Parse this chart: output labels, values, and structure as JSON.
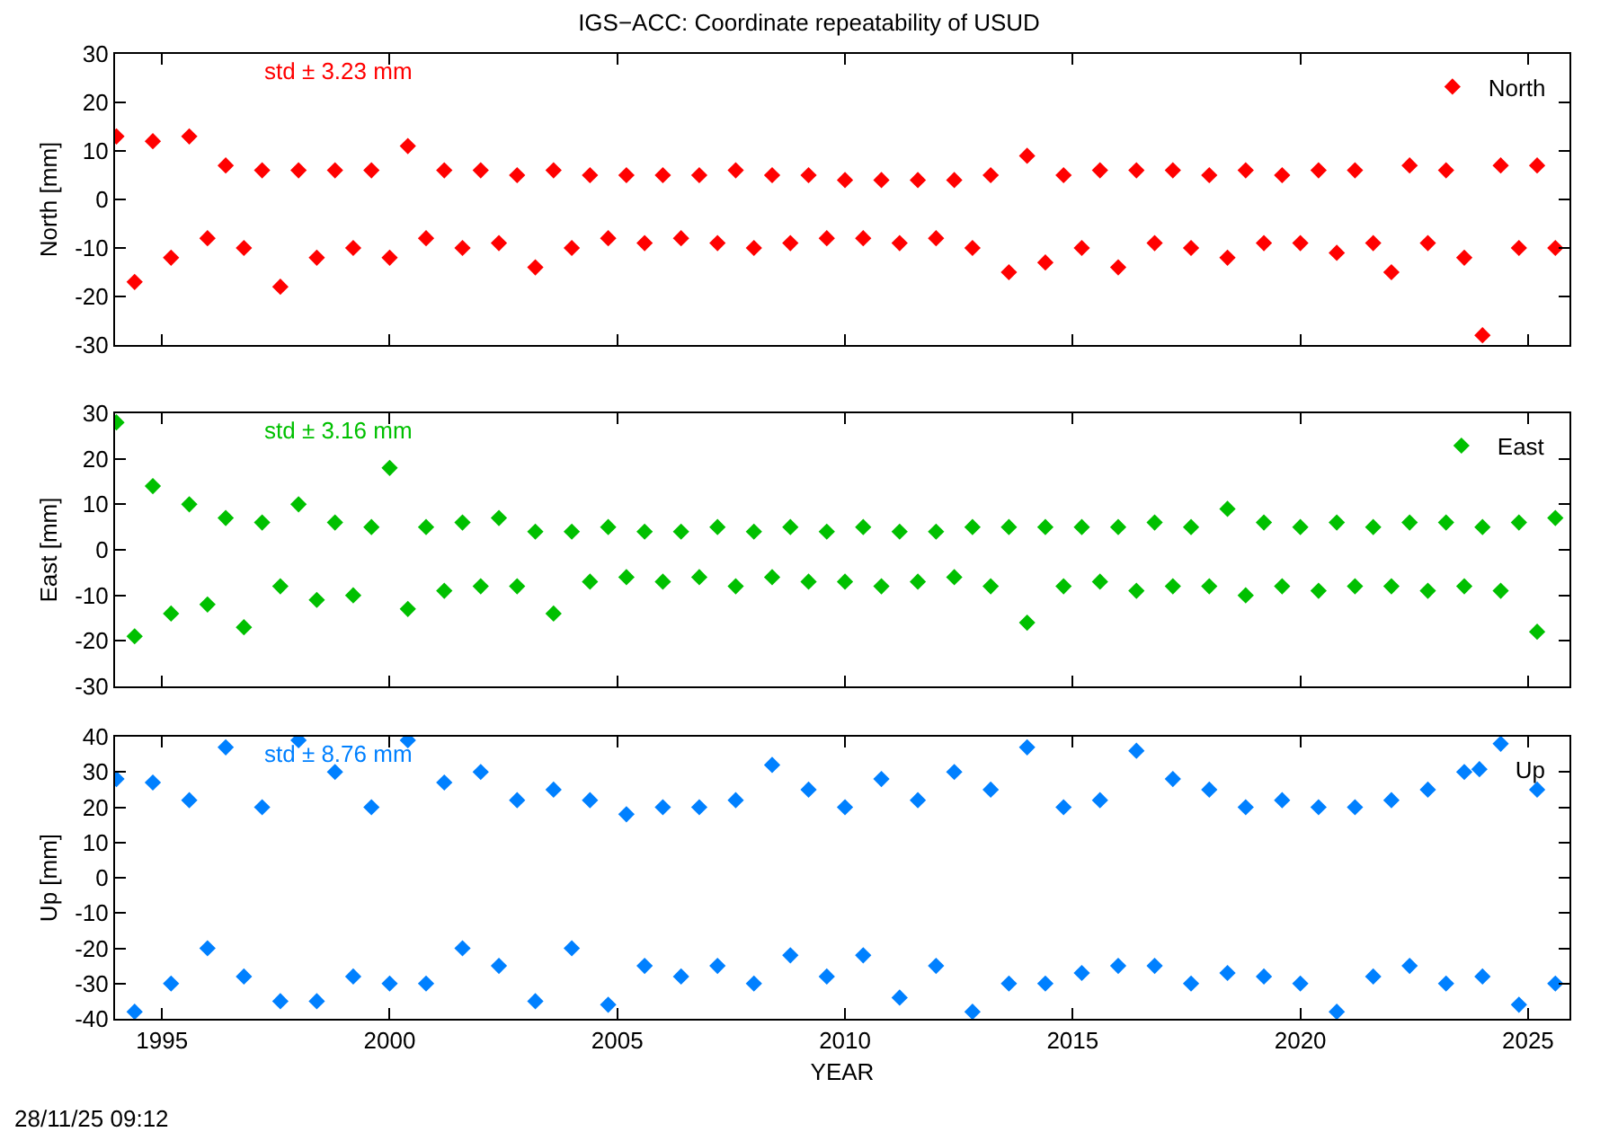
{
  "chart_data": [
    {
      "type": "scatter",
      "title": "IGS−ACC: Coordinate repeatability of USUD",
      "ylabel": "North [mm]",
      "annotations": [
        "std ± 3.23 mm"
      ],
      "legend": "top right",
      "marker": "diamond",
      "grid": false,
      "tick_labels": "y",
      "xlim": [
        1993.97,
        2025.91
      ],
      "xticks": [
        1995,
        2000,
        2005,
        2010,
        2015,
        2020,
        2025
      ],
      "ylim": [
        -30,
        30
      ],
      "yticks": [
        -30,
        -20,
        -10,
        0,
        10,
        20,
        30
      ],
      "x": [
        1994.0,
        1994.4,
        1994.8,
        1995.2,
        1995.6,
        1996.0,
        1996.4,
        1996.8,
        1997.2,
        1997.6,
        1998.0,
        1998.4,
        1998.8,
        1999.2,
        1999.6,
        2000.0,
        2000.4,
        2000.8,
        2001.2,
        2001.6,
        2002.0,
        2002.4,
        2002.8,
        2003.2,
        2003.6,
        2004.0,
        2004.4,
        2004.8,
        2005.2,
        2005.6,
        2006.0,
        2006.4,
        2006.8,
        2007.2,
        2007.6,
        2008.0,
        2008.4,
        2008.8,
        2009.2,
        2009.6,
        2010.0,
        2010.4,
        2010.8,
        2011.2,
        2011.6,
        2012.0,
        2012.4,
        2012.8,
        2013.2,
        2013.6,
        2014.0,
        2014.4,
        2014.8,
        2015.2,
        2015.6,
        2016.0,
        2016.4,
        2016.8,
        2017.2,
        2017.6,
        2018.0,
        2018.4,
        2018.8,
        2019.2,
        2019.6,
        2020.0,
        2020.4,
        2020.8,
        2021.2,
        2021.6,
        2022.0,
        2022.4,
        2022.8,
        2023.2,
        2023.6,
        2024.0,
        2024.4,
        2024.8,
        2025.2,
        2025.6
      ],
      "series": [
        {
          "name": "North",
          "color": "#ff0000",
          "values": [
            13,
            -17,
            12,
            -12,
            13,
            -8,
            7,
            -10,
            6,
            -18,
            6,
            -12,
            6,
            -10,
            6,
            -12,
            11,
            -8,
            6,
            -10,
            6,
            -9,
            5,
            -14,
            6,
            -10,
            5,
            -8,
            5,
            -9,
            5,
            -8,
            5,
            -9,
            6,
            -10,
            5,
            -9,
            5,
            -8,
            4,
            -8,
            4,
            -9,
            4,
            -8,
            4,
            -10,
            5,
            -15,
            9,
            -13,
            5,
            -10,
            6,
            -14,
            6,
            -9,
            6,
            -10,
            5,
            -12,
            6,
            -9,
            5,
            -9,
            6,
            -11,
            6,
            -9,
            -15,
            7,
            -9,
            6,
            -12,
            -28,
            7,
            -10,
            7,
            -10
          ]
        }
      ]
    },
    {
      "type": "scatter",
      "ylabel": "East [mm]",
      "annotations": [
        "std ± 3.16 mm"
      ],
      "legend": "top right",
      "marker": "diamond",
      "grid": false,
      "tick_labels": "y",
      "xlim": [
        1993.97,
        2025.91
      ],
      "xticks": [
        1995,
        2000,
        2005,
        2010,
        2015,
        2020,
        2025
      ],
      "ylim": [
        -30,
        30
      ],
      "yticks": [
        -30,
        -20,
        -10,
        0,
        10,
        20,
        30
      ],
      "x": [
        1994.0,
        1994.4,
        1994.8,
        1995.2,
        1995.6,
        1996.0,
        1996.4,
        1996.8,
        1997.2,
        1997.6,
        1998.0,
        1998.4,
        1998.8,
        1999.2,
        1999.6,
        2000.0,
        2000.4,
        2000.8,
        2001.2,
        2001.6,
        2002.0,
        2002.4,
        2002.8,
        2003.2,
        2003.6,
        2004.0,
        2004.4,
        2004.8,
        2005.2,
        2005.6,
        2006.0,
        2006.4,
        2006.8,
        2007.2,
        2007.6,
        2008.0,
        2008.4,
        2008.8,
        2009.2,
        2009.6,
        2010.0,
        2010.4,
        2010.8,
        2011.2,
        2011.6,
        2012.0,
        2012.4,
        2012.8,
        2013.2,
        2013.6,
        2014.0,
        2014.4,
        2014.8,
        2015.2,
        2015.6,
        2016.0,
        2016.4,
        2016.8,
        2017.2,
        2017.6,
        2018.0,
        2018.4,
        2018.8,
        2019.2,
        2019.6,
        2020.0,
        2020.4,
        2020.8,
        2021.2,
        2021.6,
        2022.0,
        2022.4,
        2022.8,
        2023.2,
        2023.6,
        2024.0,
        2024.4,
        2024.8,
        2025.2,
        2025.6
      ],
      "series": [
        {
          "name": "East",
          "color": "#00c000",
          "values": [
            28,
            -19,
            14,
            -14,
            10,
            -12,
            7,
            -17,
            6,
            -8,
            10,
            -11,
            6,
            -10,
            5,
            18,
            -13,
            5,
            -9,
            6,
            -8,
            7,
            -8,
            4,
            -14,
            4,
            -7,
            5,
            -6,
            4,
            -7,
            4,
            -6,
            5,
            -8,
            4,
            -6,
            5,
            -7,
            4,
            -7,
            5,
            -8,
            4,
            -7,
            4,
            -6,
            5,
            -8,
            5,
            -16,
            5,
            -8,
            5,
            -7,
            5,
            -9,
            6,
            -8,
            5,
            -8,
            9,
            -10,
            6,
            -8,
            5,
            -9,
            6,
            -8,
            5,
            -8,
            6,
            -9,
            6,
            -8,
            5,
            -9,
            6,
            -18,
            7
          ]
        }
      ]
    },
    {
      "type": "scatter",
      "ylabel": "Up [mm]",
      "xlabel": "YEAR",
      "annotations": [
        "std ± 8.76 mm",
        "28/11/25 09:12"
      ],
      "legend": "top right",
      "marker": "diamond",
      "grid": false,
      "xlim": [
        1993.97,
        2025.91
      ],
      "xticks": [
        1995,
        2000,
        2005,
        2010,
        2015,
        2020,
        2025
      ],
      "ylim": [
        -40,
        40
      ],
      "yticks": [
        -40,
        -30,
        -20,
        -10,
        0,
        10,
        20,
        30,
        40
      ],
      "x": [
        1994.0,
        1994.4,
        1994.8,
        1995.2,
        1995.6,
        1996.0,
        1996.4,
        1996.8,
        1997.2,
        1997.6,
        1998.0,
        1998.4,
        1998.8,
        1999.2,
        1999.6,
        2000.0,
        2000.4,
        2000.8,
        2001.2,
        2001.6,
        2002.0,
        2002.4,
        2002.8,
        2003.2,
        2003.6,
        2004.0,
        2004.4,
        2004.8,
        2005.2,
        2005.6,
        2006.0,
        2006.4,
        2006.8,
        2007.2,
        2007.6,
        2008.0,
        2008.4,
        2008.8,
        2009.2,
        2009.6,
        2010.0,
        2010.4,
        2010.8,
        2011.2,
        2011.6,
        2012.0,
        2012.4,
        2012.8,
        2013.2,
        2013.6,
        2014.0,
        2014.4,
        2014.8,
        2015.2,
        2015.6,
        2016.0,
        2016.4,
        2016.8,
        2017.2,
        2017.6,
        2018.0,
        2018.4,
        2018.8,
        2019.2,
        2019.6,
        2020.0,
        2020.4,
        2020.8,
        2021.2,
        2021.6,
        2022.0,
        2022.4,
        2022.8,
        2023.2,
        2023.6,
        2024.0,
        2024.4,
        2024.8,
        2025.2,
        2025.6
      ],
      "series": [
        {
          "name": "Up",
          "color": "#0080ff",
          "values": [
            28,
            -38,
            27,
            -30,
            22,
            -20,
            37,
            -28,
            20,
            -35,
            39,
            -35,
            30,
            -28,
            20,
            -30,
            39,
            -30,
            27,
            -20,
            30,
            -25,
            22,
            -35,
            25,
            -20,
            22,
            -36,
            18,
            -25,
            20,
            -28,
            20,
            -25,
            22,
            -30,
            32,
            -22,
            25,
            -28,
            20,
            -22,
            28,
            -34,
            22,
            -25,
            30,
            -38,
            25,
            -30,
            37,
            -30,
            20,
            -27,
            22,
            -25,
            36,
            -25,
            28,
            -30,
            25,
            -27,
            20,
            -28,
            22,
            -30,
            20,
            -38,
            20,
            -28,
            22,
            -25,
            25,
            -30,
            30,
            -28,
            38,
            -36,
            25,
            -30
          ]
        }
      ]
    }
  ]
}
